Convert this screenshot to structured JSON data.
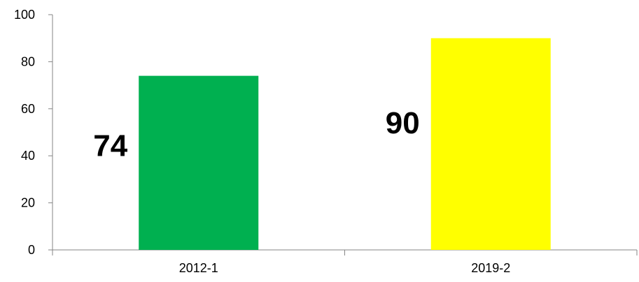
{
  "chart_data": {
    "type": "bar",
    "categories": [
      "2012-1",
      "2019-2"
    ],
    "values": [
      74,
      90
    ],
    "data_labels": [
      "74",
      "90"
    ],
    "colors": [
      "#00B050",
      "#FFFF00"
    ],
    "ylim": [
      0,
      100
    ],
    "yticks": [
      0,
      20,
      40,
      60,
      80,
      100
    ],
    "ytick_labels": [
      "0",
      "20",
      "40",
      "60",
      "80",
      "100"
    ],
    "grid": false,
    "legend": "none",
    "title": "",
    "xlabel": "",
    "ylabel": ""
  }
}
